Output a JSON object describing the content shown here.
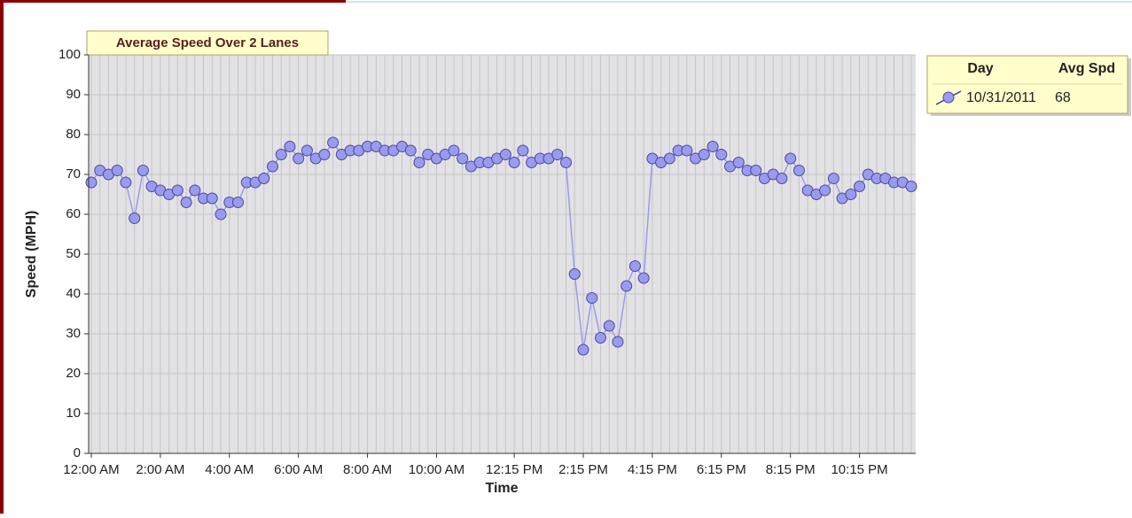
{
  "chart_data": {
    "type": "line",
    "title": "Average Speed Over 2 Lanes",
    "x_label": "Time",
    "y_label": "Speed (MPH)",
    "categories": [
      "12:00 AM",
      null,
      null,
      null,
      null,
      null,
      null,
      null,
      "2:00 AM",
      null,
      null,
      null,
      null,
      null,
      null,
      null,
      "4:00 AM",
      null,
      null,
      null,
      null,
      null,
      null,
      null,
      "6:00 AM",
      null,
      null,
      null,
      null,
      null,
      null,
      null,
      "8:00 AM",
      null,
      null,
      null,
      null,
      null,
      null,
      null,
      "10:00 AM",
      null,
      null,
      null,
      null,
      null,
      null,
      null,
      null,
      "12:15 PM",
      null,
      null,
      null,
      null,
      null,
      null,
      null,
      "2:15 PM",
      null,
      null,
      null,
      null,
      null,
      null,
      null,
      "4:15 PM",
      null,
      null,
      null,
      null,
      null,
      null,
      null,
      "6:15 PM",
      null,
      null,
      null,
      null,
      null,
      null,
      null,
      "8:15 PM",
      null,
      null,
      null,
      null,
      null,
      null,
      null,
      "10:15 PM",
      null,
      null,
      null,
      null,
      null,
      null
    ],
    "series": [
      {
        "name": "10/31/2011",
        "color": "#9a9aee",
        "values": [
          68,
          71,
          70,
          71,
          68,
          59,
          71,
          67,
          66,
          65,
          66,
          63,
          66,
          64,
          64,
          60,
          63,
          63,
          68,
          68,
          69,
          72,
          75,
          77,
          74,
          76,
          74,
          75,
          78,
          75,
          76,
          76,
          77,
          77,
          76,
          76,
          77,
          76,
          73,
          75,
          74,
          75,
          76,
          74,
          72,
          73,
          73,
          74,
          75,
          73,
          76,
          73,
          74,
          74,
          75,
          73,
          45,
          26,
          39,
          29,
          32,
          28,
          42,
          47,
          44,
          74,
          73,
          74,
          76,
          76,
          74,
          75,
          77,
          75,
          72,
          73,
          71,
          71,
          69,
          70,
          69,
          74,
          71,
          66,
          65,
          66,
          69,
          64,
          65,
          67,
          70,
          69,
          69,
          68,
          68,
          67
        ]
      }
    ],
    "ylim": [
      0,
      100
    ],
    "yticks": [
      0,
      10,
      20,
      30,
      40,
      50,
      60,
      70,
      80,
      90,
      100
    ],
    "grid": true,
    "legend": {
      "position": "right",
      "headers": [
        "Day",
        "Avg Spd"
      ],
      "summary": [
        68
      ]
    }
  }
}
